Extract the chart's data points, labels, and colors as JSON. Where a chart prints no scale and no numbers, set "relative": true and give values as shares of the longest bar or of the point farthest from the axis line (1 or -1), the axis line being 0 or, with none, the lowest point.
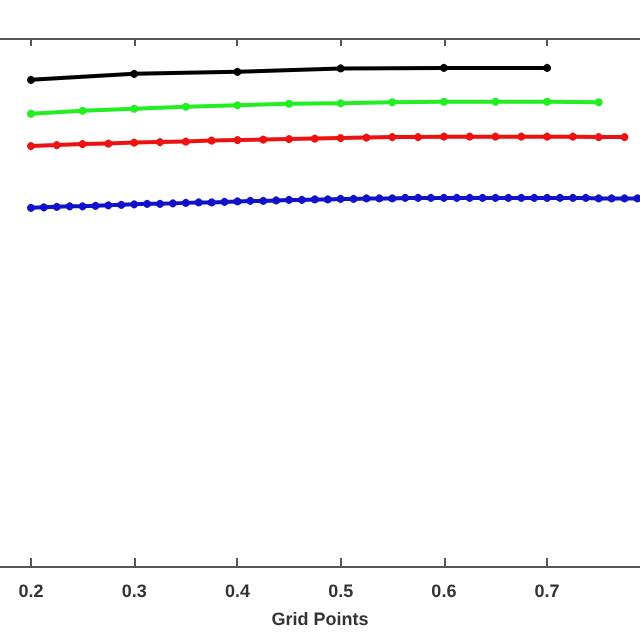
{
  "chart_data": {
    "type": "line",
    "xlabel": "Grid Points",
    "relative": true,
    "xlim": [
      0.17,
      0.79
    ],
    "xticks": [
      0.2,
      0.3,
      0.4,
      0.5,
      0.6,
      0.7
    ],
    "grid": false,
    "marker": "circle",
    "line_style": "solid",
    "series": [
      {
        "color": "#000000",
        "x": [
          0.2,
          0.3,
          0.4,
          0.5,
          0.6,
          0.7
        ],
        "values": [
          0.976,
          0.988,
          0.992,
          0.999,
          1,
          1
        ]
      },
      {
        "color": "#22ee22",
        "x": [
          0.2,
          0.25,
          0.3,
          0.35,
          0.4,
          0.45,
          0.5,
          0.55,
          0.6,
          0.65,
          0.7,
          0.75
        ],
        "values": [
          0.908,
          0.914,
          0.918,
          0.922,
          0.925,
          0.928,
          0.929,
          0.931,
          0.932,
          0.932,
          0.932,
          0.931
        ]
      },
      {
        "color": "#ee1111",
        "x": [
          0.2,
          0.225,
          0.25,
          0.275,
          0.3,
          0.325,
          0.35,
          0.375,
          0.4,
          0.425,
          0.45,
          0.475,
          0.5,
          0.525,
          0.55,
          0.575,
          0.6,
          0.625,
          0.65,
          0.675,
          0.7,
          0.725,
          0.75,
          0.775
        ],
        "values": [
          0.843,
          0.845,
          0.847,
          0.848,
          0.85,
          0.851,
          0.852,
          0.854,
          0.855,
          0.856,
          0.857,
          0.858,
          0.859,
          0.86,
          0.861,
          0.861,
          0.862,
          0.862,
          0.862,
          0.862,
          0.862,
          0.862,
          0.861,
          0.861
        ]
      },
      {
        "color": "#1111cc",
        "x": [
          0.2,
          0.2125,
          0.225,
          0.2375,
          0.25,
          0.2625,
          0.275,
          0.2875,
          0.3,
          0.3125,
          0.325,
          0.3375,
          0.35,
          0.3625,
          0.375,
          0.3875,
          0.4,
          0.4125,
          0.425,
          0.4375,
          0.45,
          0.4625,
          0.475,
          0.4875,
          0.5,
          0.5125,
          0.525,
          0.5375,
          0.55,
          0.5625,
          0.575,
          0.5875,
          0.6,
          0.6125,
          0.625,
          0.6375,
          0.65,
          0.6625,
          0.675,
          0.6875,
          0.7,
          0.7125,
          0.725,
          0.7375,
          0.75,
          0.7625,
          0.775,
          0.7875
        ],
        "values": [
          0.719,
          0.72,
          0.721,
          0.722,
          0.722,
          0.723,
          0.724,
          0.725,
          0.726,
          0.727,
          0.727,
          0.728,
          0.729,
          0.73,
          0.73,
          0.731,
          0.732,
          0.733,
          0.733,
          0.734,
          0.735,
          0.735,
          0.736,
          0.736,
          0.737,
          0.737,
          0.738,
          0.738,
          0.738,
          0.739,
          0.739,
          0.739,
          0.739,
          0.739,
          0.739,
          0.739,
          0.739,
          0.739,
          0.739,
          0.739,
          0.739,
          0.739,
          0.739,
          0.739,
          0.738,
          0.738,
          0.738,
          0.738
        ]
      }
    ]
  }
}
